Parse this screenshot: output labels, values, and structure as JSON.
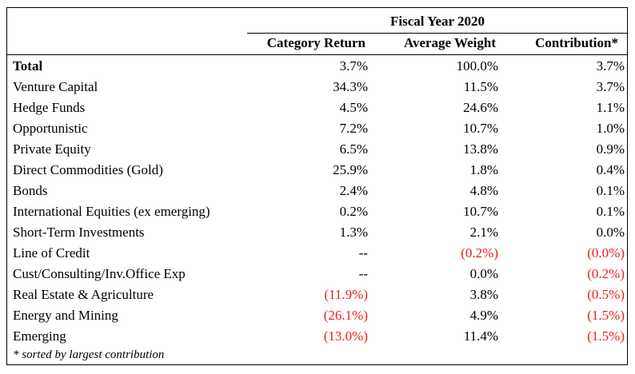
{
  "table": {
    "period_header": "Fiscal Year 2020",
    "columns": [
      "Category Return",
      "Average Weight",
      "Contribution*"
    ],
    "rows": [
      {
        "label": "Total",
        "category_return": "3.7%",
        "average_weight": "100.0%",
        "contribution": "3.7%",
        "neg": [
          false,
          false,
          false
        ],
        "total": true
      },
      {
        "label": "Venture Capital",
        "category_return": "34.3%",
        "average_weight": "11.5%",
        "contribution": "3.7%",
        "neg": [
          false,
          false,
          false
        ]
      },
      {
        "label": "Hedge Funds",
        "category_return": "4.5%",
        "average_weight": "24.6%",
        "contribution": "1.1%",
        "neg": [
          false,
          false,
          false
        ]
      },
      {
        "label": "Opportunistic",
        "category_return": "7.2%",
        "average_weight": "10.7%",
        "contribution": "1.0%",
        "neg": [
          false,
          false,
          false
        ]
      },
      {
        "label": "Private Equity",
        "category_return": "6.5%",
        "average_weight": "13.8%",
        "contribution": "0.9%",
        "neg": [
          false,
          false,
          false
        ]
      },
      {
        "label": "Direct Commodities (Gold)",
        "category_return": "25.9%",
        "average_weight": "1.8%",
        "contribution": "0.4%",
        "neg": [
          false,
          false,
          false
        ]
      },
      {
        "label": "Bonds",
        "category_return": "2.4%",
        "average_weight": "4.8%",
        "contribution": "0.1%",
        "neg": [
          false,
          false,
          false
        ]
      },
      {
        "label": "International Equities (ex emerging)",
        "category_return": "0.2%",
        "average_weight": "10.7%",
        "contribution": "0.1%",
        "neg": [
          false,
          false,
          false
        ]
      },
      {
        "label": "Short-Term Investments",
        "category_return": "1.3%",
        "average_weight": "2.1%",
        "contribution": "0.0%",
        "neg": [
          false,
          false,
          false
        ]
      },
      {
        "label": "Line of Credit",
        "category_return": "--",
        "average_weight": "(0.2%)",
        "contribution": "(0.0%)",
        "neg": [
          false,
          true,
          true
        ]
      },
      {
        "label": "Cust/Consulting/Inv.Office Exp",
        "category_return": "--",
        "average_weight": "0.0%",
        "contribution": "(0.2%)",
        "neg": [
          false,
          false,
          true
        ]
      },
      {
        "label": "Real Estate & Agriculture",
        "category_return": "(11.9%)",
        "average_weight": "3.8%",
        "contribution": "(0.5%)",
        "neg": [
          true,
          false,
          true
        ]
      },
      {
        "label": "Energy and Mining",
        "category_return": "(26.1%)",
        "average_weight": "4.9%",
        "contribution": "(1.5%)",
        "neg": [
          true,
          false,
          true
        ]
      },
      {
        "label": "Emerging",
        "category_return": "(13.0%)",
        "average_weight": "11.4%",
        "contribution": "(1.5%)",
        "neg": [
          true,
          false,
          true
        ]
      }
    ],
    "footnote": "* sorted by largest contribution"
  },
  "colors": {
    "text": "#000000",
    "negative": "#e8201c",
    "background": "#ffffff"
  }
}
